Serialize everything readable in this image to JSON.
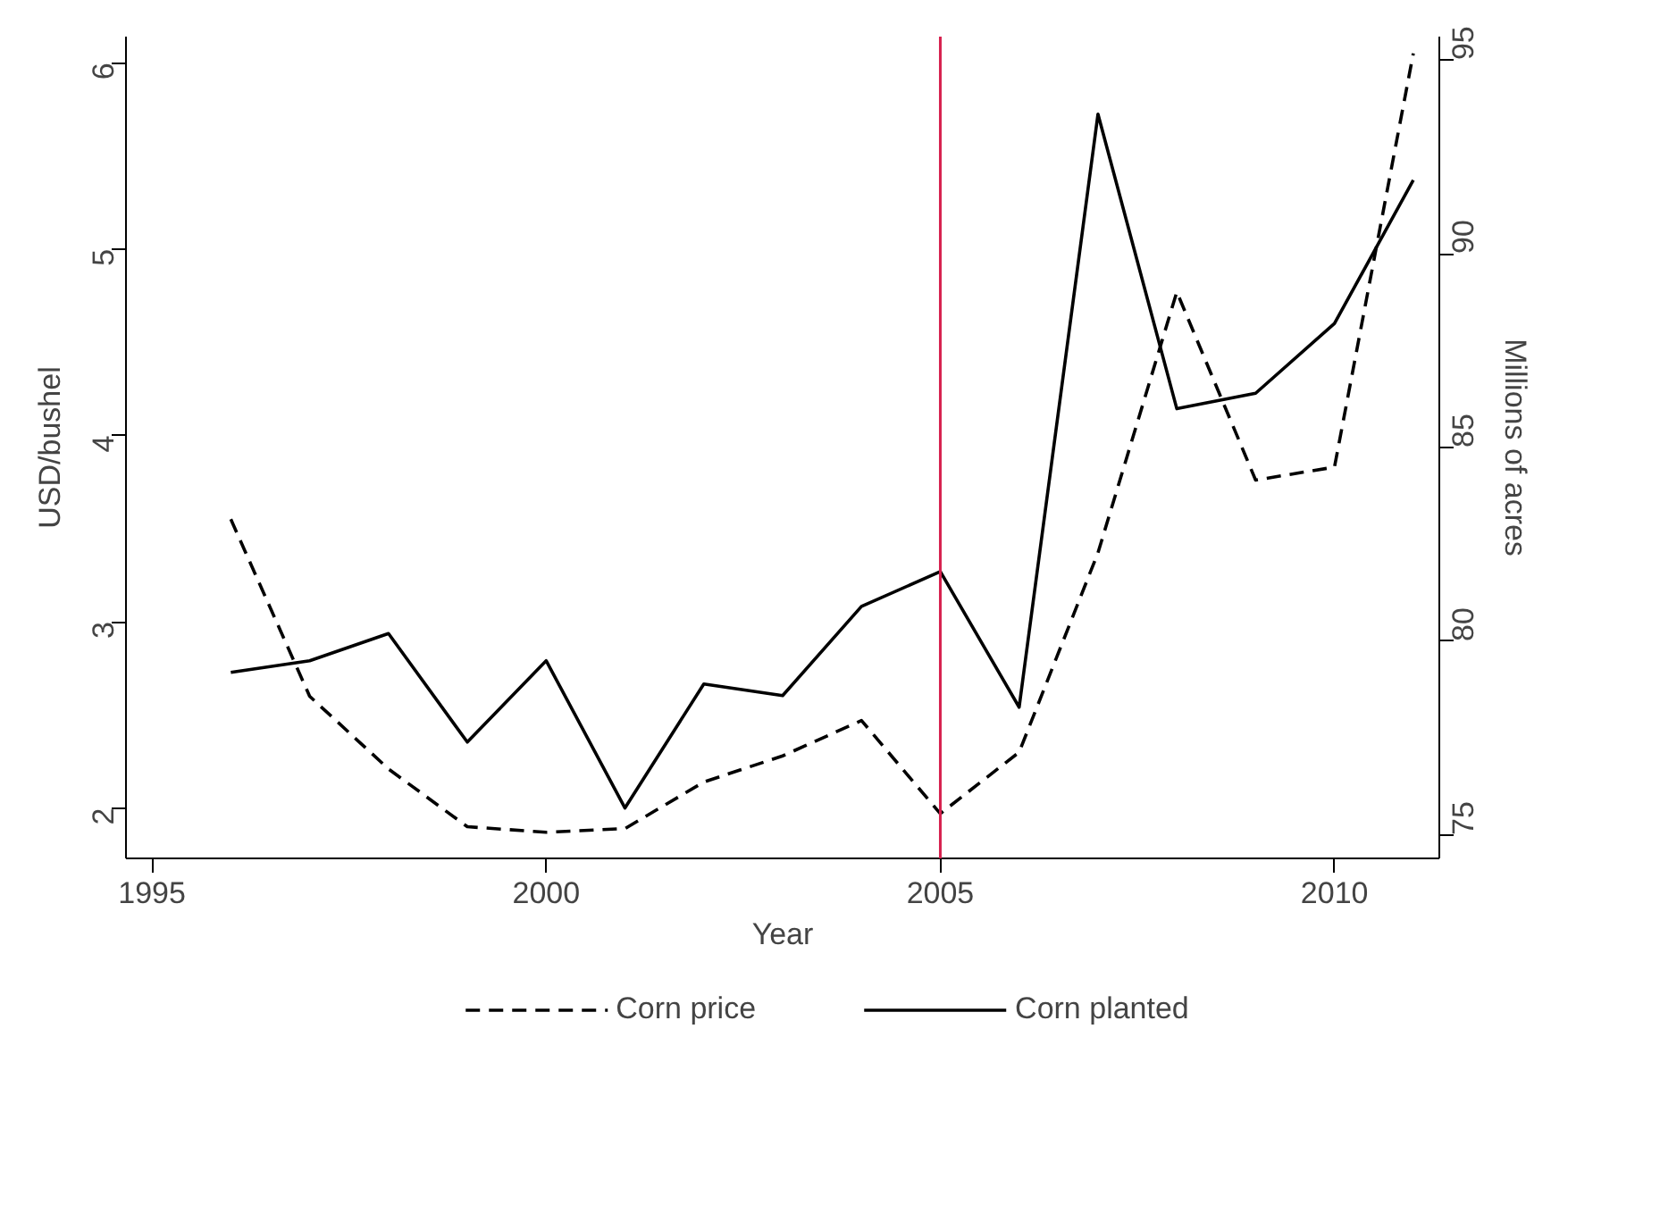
{
  "chart_data": {
    "type": "line",
    "xlabel": "Year",
    "ylabel": "USD/bushel",
    "y2label": "Millions of acres",
    "x": [
      1996,
      1997,
      1998,
      1999,
      2000,
      2001,
      2002,
      2003,
      2004,
      2005,
      2006,
      2007,
      2008,
      2009,
      2010,
      2011
    ],
    "series": [
      {
        "name": "Corn price",
        "color": "#000000",
        "line_style": "dashed",
        "values": [
          3.55,
          2.6,
          2.21,
          1.9,
          1.87,
          1.89,
          2.14,
          2.28,
          2.47,
          1.97,
          2.3,
          3.37,
          4.77,
          3.76,
          3.83,
          6.05
        ]
      },
      {
        "name": "Corn planted",
        "color": "#000000",
        "line_style": "solid",
        "axis": "y2",
        "values": [
          79.2,
          79.5,
          80.2,
          77.4,
          79.5,
          75.7,
          78.9,
          78.6,
          80.9,
          81.8,
          78.3,
          93.6,
          86.0,
          86.4,
          88.2,
          91.9
        ]
      }
    ],
    "xlim": [
      1994.67,
      2011.33
    ],
    "xticks": [
      1995,
      2000,
      2005,
      2010
    ],
    "ylim": [
      1.73,
      6.14
    ],
    "yticks": [
      2,
      3,
      4,
      5,
      6
    ],
    "y2lim": [
      74.4,
      95.6
    ],
    "y2ticks": [
      75,
      80,
      85,
      90,
      95
    ],
    "ref_lines": [
      {
        "axis": "x",
        "value": 2005,
        "color": "#d6204e"
      }
    ],
    "grid": false,
    "legend": "bottom",
    "marker": "none"
  }
}
